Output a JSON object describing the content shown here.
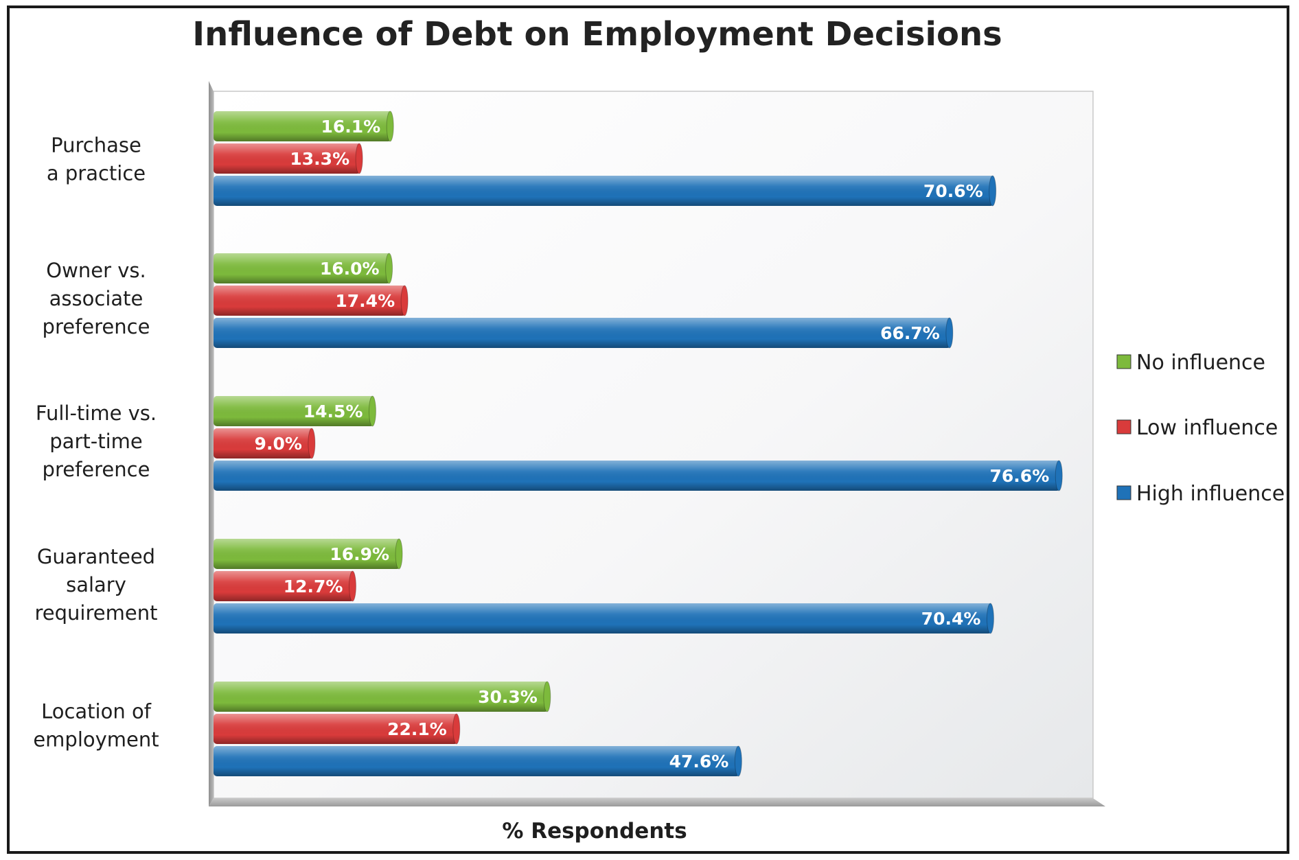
{
  "chart_data": {
    "type": "bar",
    "orientation": "horizontal",
    "title": "Influence of Debt on Employment Decisions",
    "xlabel": "% Respondents",
    "ylabel": "",
    "xlim": [
      0,
      100
    ],
    "grid": false,
    "legend_position": "right",
    "categories": [
      [
        "Purchase",
        "a practice"
      ],
      [
        "Owner vs.",
        "associate",
        "preference"
      ],
      [
        "Full-time vs.",
        "part-time",
        "preference"
      ],
      [
        "Guaranteed",
        "salary",
        "requirement"
      ],
      [
        "Location of",
        "employment"
      ]
    ],
    "series": [
      {
        "name": "No influence",
        "color": "#7dba3c",
        "values": [
          16.1,
          16.0,
          14.5,
          16.9,
          30.3
        ],
        "labels": [
          "16.1%",
          "16.0%",
          "14.5%",
          "16.9%",
          "30.3%"
        ]
      },
      {
        "name": "Low influence",
        "color": "#d93b3b",
        "values": [
          13.3,
          17.4,
          9.0,
          12.7,
          22.1
        ],
        "labels": [
          "13.3%",
          "17.4%",
          "9.0%",
          "12.7%",
          "22.1%"
        ]
      },
      {
        "name": "High influence",
        "color": "#1f72b8",
        "values": [
          70.6,
          66.7,
          76.6,
          70.4,
          47.6
        ],
        "labels": [
          "70.6%",
          "66.7%",
          "76.6%",
          "70.4%",
          "47.6%"
        ]
      }
    ]
  }
}
